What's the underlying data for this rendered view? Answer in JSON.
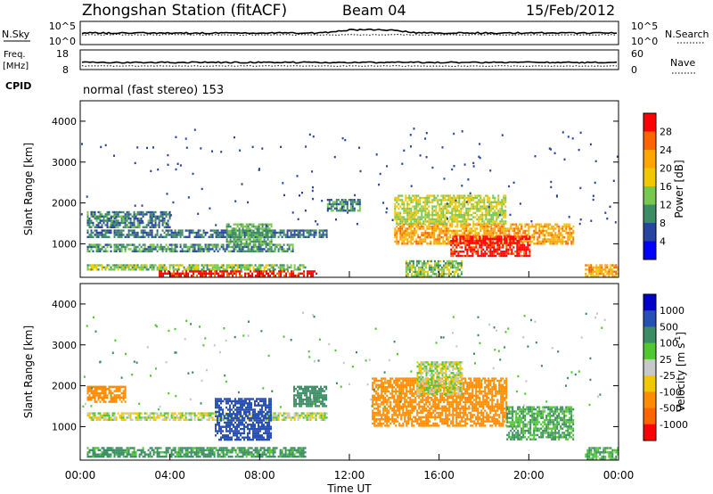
{
  "header": {
    "station": "Zhongshan Station (fitACF)",
    "beam": "Beam 04",
    "date": "15/Feb/2012"
  },
  "nsky_panel": {
    "label": "N.Sky",
    "right_label": "N.Search",
    "left_ticks": [
      "10^5",
      "10^0"
    ],
    "right_ticks": [
      "10^5",
      "10^0"
    ]
  },
  "freq_panel": {
    "label_top": "Freq.",
    "label_unit": "[MHz]",
    "left_ticks": [
      "18",
      "8"
    ],
    "right_ticks": [
      "60",
      "0"
    ],
    "right_label": "Nave"
  },
  "cpid": {
    "label": "CPID",
    "value": "normal (fast stereo) 153"
  },
  "power_panel": {
    "ylabel": "Slant Range [km]",
    "yticks": [
      "4000",
      "3000",
      "2000",
      "1000"
    ],
    "colorbar_label": "Power [dB]",
    "colorbar_ticks": [
      "28",
      "24",
      "20",
      "16",
      "12",
      "8",
      "4"
    ],
    "colors": [
      "#ff0000",
      "#ff6400",
      "#ffa500",
      "#f0c800",
      "#78c850",
      "#3c8c64",
      "#2846a0",
      "#0000ff"
    ]
  },
  "velocity_panel": {
    "ylabel": "Slant Range [km]",
    "yticks": [
      "4000",
      "3000",
      "2000",
      "1000"
    ],
    "colorbar_label": "Velocity [m s",
    "colorbar_label_sup": "-1",
    "colorbar_label_end": "]",
    "colorbar_ticks": [
      "1000",
      "500",
      "100",
      "25",
      "-25",
      "-100",
      "-500",
      "-1000"
    ],
    "colors": [
      "#0000c8",
      "#2850b4",
      "#3c8c64",
      "#50c832",
      "#c8c8c8",
      "#f0c800",
      "#ff8c00",
      "#ff6400",
      "#ff0000"
    ]
  },
  "xaxis": {
    "label": "Time UT",
    "ticks": [
      "00:00",
      "04:00",
      "08:00",
      "12:00",
      "16:00",
      "20:00",
      "00:00"
    ]
  },
  "chart_data": {
    "type": "heatmap",
    "x_range_hours": [
      0,
      24
    ],
    "y_range_km": [
      180,
      4500
    ],
    "power_blobs": [
      {
        "t0": 0.3,
        "t1": 11.0,
        "r0": 1150,
        "r1": 1350,
        "db": 6
      },
      {
        "t0": 0.3,
        "t1": 4.0,
        "r0": 1400,
        "r1": 1800,
        "db": 7
      },
      {
        "t0": 0.3,
        "t1": 9.5,
        "r0": 800,
        "r1": 1000,
        "db": 8
      },
      {
        "t0": 0.3,
        "t1": 10.0,
        "r0": 350,
        "r1": 500,
        "db": 12
      },
      {
        "t0": 3.5,
        "t1": 10.5,
        "r0": 200,
        "r1": 350,
        "db": 28
      },
      {
        "t0": 6.5,
        "t1": 8.5,
        "r0": 1000,
        "r1": 1500,
        "db": 10
      },
      {
        "t0": 14.0,
        "t1": 22.0,
        "r0": 1000,
        "r1": 1500,
        "db": 20
      },
      {
        "t0": 16.5,
        "t1": 20.0,
        "r0": 700,
        "r1": 1200,
        "db": 28
      },
      {
        "t0": 14.0,
        "t1": 19.0,
        "r0": 1500,
        "r1": 2200,
        "db": 14
      },
      {
        "t0": 22.5,
        "t1": 24.0,
        "r0": 200,
        "r1": 500,
        "db": 20
      },
      {
        "t0": 11.0,
        "t1": 12.5,
        "r0": 1800,
        "r1": 2100,
        "db": 8
      },
      {
        "t0": 14.5,
        "t1": 17.0,
        "r0": 200,
        "r1": 600,
        "db": 12
      }
    ],
    "velocity_blobs": [
      {
        "t0": 0.3,
        "t1": 11.0,
        "r0": 1150,
        "r1": 1350,
        "v": 0
      },
      {
        "t0": 0.3,
        "t1": 2.0,
        "r0": 1600,
        "r1": 2000,
        "v": -300
      },
      {
        "t0": 0.3,
        "t1": 10.0,
        "r0": 250,
        "r1": 500,
        "v": 150
      },
      {
        "t0": 6.0,
        "t1": 8.5,
        "r0": 700,
        "r1": 1700,
        "v": 700
      },
      {
        "t0": 13.0,
        "t1": 19.0,
        "r0": 1000,
        "r1": 2200,
        "v": -300
      },
      {
        "t0": 19.0,
        "t1": 22.0,
        "r0": 700,
        "r1": 1500,
        "v": 100
      },
      {
        "t0": 22.5,
        "t1": 24.0,
        "r0": 200,
        "r1": 500,
        "v": 100
      },
      {
        "t0": 15.0,
        "t1": 17.0,
        "r0": 1800,
        "r1": 2600,
        "v": 0
      },
      {
        "t0": 9.5,
        "t1": 11.0,
        "r0": 1500,
        "r1": 2000,
        "v": 300
      }
    ]
  }
}
